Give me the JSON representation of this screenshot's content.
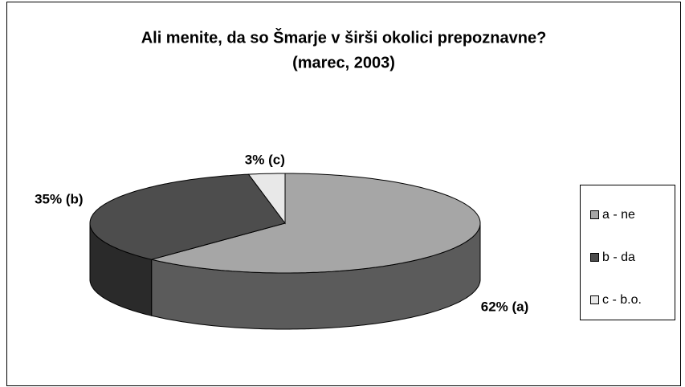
{
  "chart_data": {
    "type": "pie",
    "title": "Ali menite, da so Šmarje v širši okolici prepoznavne?",
    "subtitle": "(marec, 2003)",
    "categories": [
      "a - ne",
      "b - da",
      "c - b.o."
    ],
    "values": [
      62,
      35,
      3
    ],
    "value_labels": [
      "62% (a)",
      "35% (b)",
      "3% (c)"
    ],
    "colors": [
      "#a6a6a6",
      "#4d4d4d",
      "#e8e8e8"
    ],
    "legend": "right"
  }
}
